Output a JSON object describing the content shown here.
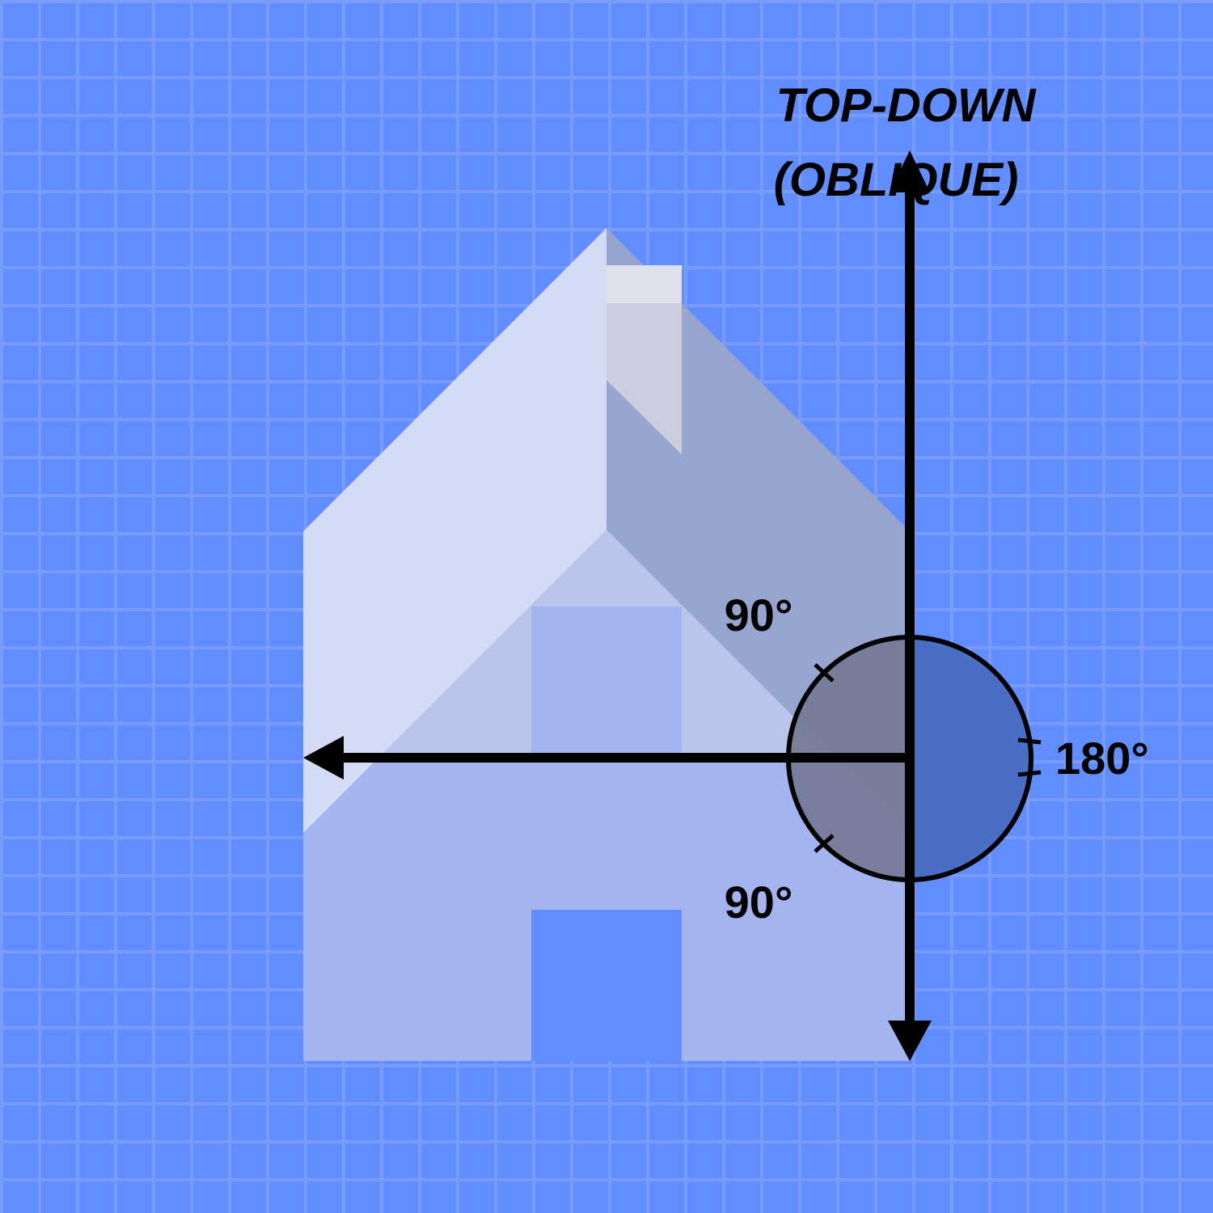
{
  "title": {
    "line1": "TOP-DOWN",
    "line2": "(OBLIQUE)"
  },
  "angles": {
    "upper": "90°",
    "lower": "90°",
    "right": "180°"
  },
  "colors": {
    "background": "#618dfe",
    "grid": "#7e9ffc",
    "house_light": "#d4dbf4",
    "house_mid": "#bac5ec",
    "house_shadow": "#9aa6cc",
    "house_lower": "#a4b4ee",
    "chimney": "#d0d2e2",
    "door": "#618dfe",
    "circle_left": "#767b96",
    "circle_right": "#4a6ec4",
    "axis": "#000000"
  }
}
